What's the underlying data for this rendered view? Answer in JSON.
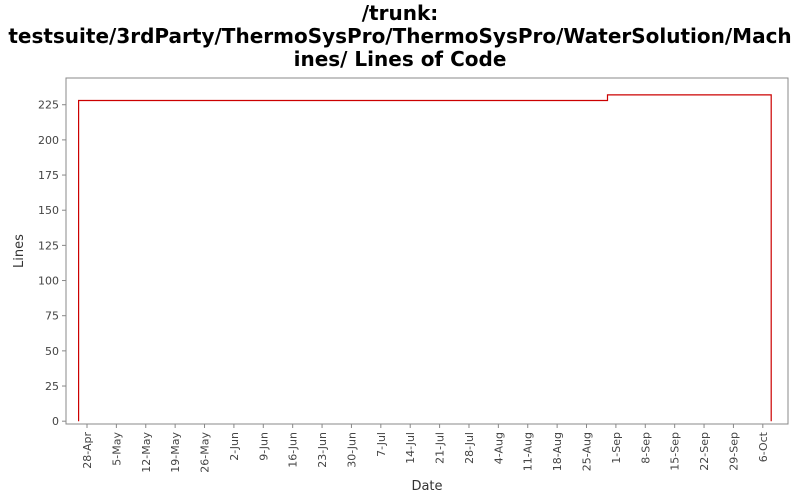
{
  "chart_data": {
    "type": "step-line",
    "title": [
      "/trunk:",
      "testsuite/3rdParty/ThermoSysPro/ThermoSysPro/WaterSolution/Mach",
      "ines/ Lines of Code"
    ],
    "x_label": "Date",
    "y_label": "Lines",
    "x": [
      "26-Apr",
      "26-Apr",
      "30-Aug",
      "30-Aug",
      "8-Oct",
      "8-Oct"
    ],
    "series": [
      {
        "name": "Lines",
        "color": "#cc0000",
        "values": [
          0,
          228,
          228,
          232,
          232,
          0
        ]
      }
    ],
    "xlim": [
      "23-Apr",
      "12-Oct"
    ],
    "xticks": [
      "28-Apr",
      "5-May",
      "12-May",
      "19-May",
      "26-May",
      "2-Jun",
      "9-Jun",
      "16-Jun",
      "23-Jun",
      "30-Jun",
      "7-Jul",
      "14-Jul",
      "21-Jul",
      "28-Jul",
      "4-Aug",
      "11-Aug",
      "18-Aug",
      "25-Aug",
      "1-Sep",
      "8-Sep",
      "15-Sep",
      "22-Sep",
      "29-Sep",
      "6-Oct"
    ],
    "ylim": [
      -2,
      244
    ],
    "yticks": [
      0,
      25,
      50,
      75,
      100,
      125,
      150,
      175,
      200,
      225
    ]
  }
}
